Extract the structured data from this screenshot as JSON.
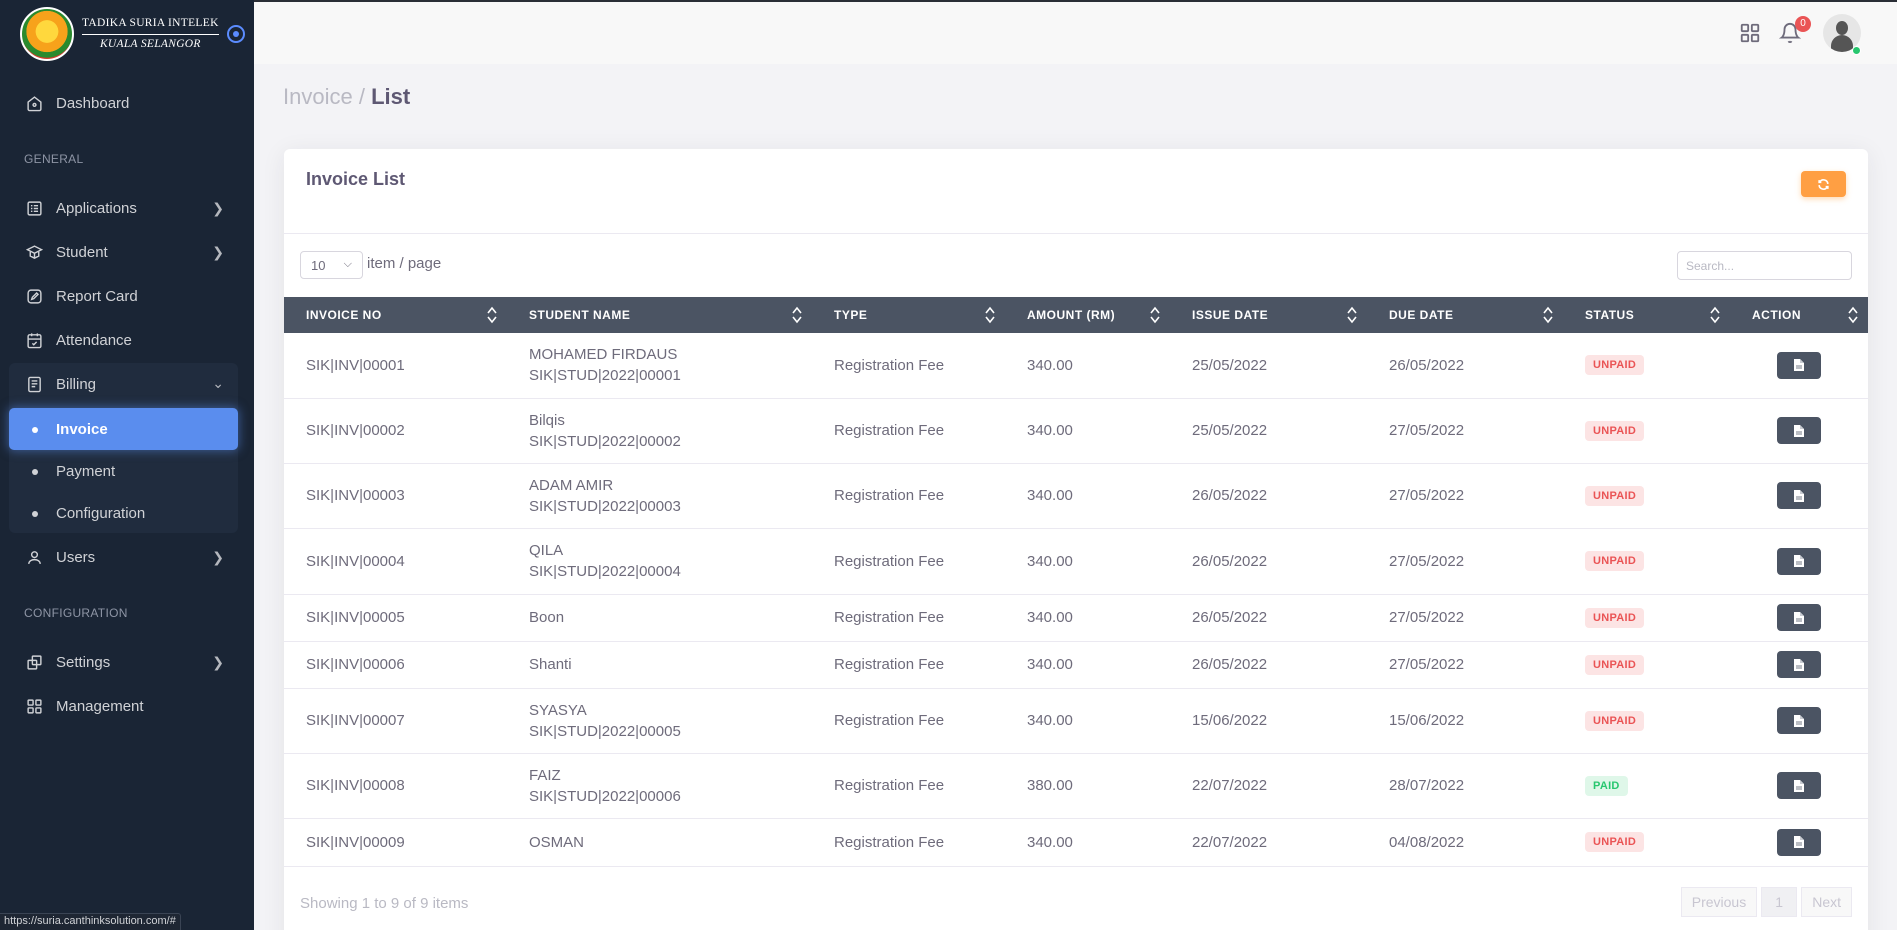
{
  "brand": {
    "line1": "TADIKA SURIA INTELEK",
    "line2": "KUALA SELANGOR"
  },
  "sidebar": {
    "dashboard": "Dashboard",
    "section_general": "GENERAL",
    "applications": "Applications",
    "student": "Student",
    "report_card": "Report Card",
    "attendance": "Attendance",
    "billing": "Billing",
    "invoice": "Invoice",
    "payment": "Payment",
    "configuration": "Configuration",
    "users": "Users",
    "section_configuration": "CONFIGURATION",
    "settings": "Settings",
    "management": "Management",
    "icons": [
      "home-icon",
      "list-icon",
      "book-icon",
      "edit-icon",
      "calendar-check-icon",
      "file-text-icon",
      "user-icon",
      "copy-icon",
      "grid-icon"
    ]
  },
  "topbar": {
    "notification_count": "0"
  },
  "breadcrumb": {
    "parent": "Invoice",
    "sep": "/",
    "current": "List"
  },
  "card": {
    "title": "Invoice List"
  },
  "controls": {
    "page_size": "10",
    "page_size_label": "item / page",
    "search_placeholder": "Search..."
  },
  "table": {
    "headers": [
      "INVOICE NO",
      "STUDENT NAME",
      "TYPE",
      "AMOUNT (RM)",
      "ISSUE DATE",
      "DUE DATE",
      "STATUS",
      "ACTION"
    ],
    "rows": [
      {
        "invoice_no": "SIK|INV|00001",
        "name": "MOHAMED FIRDAUS",
        "student_id": "SIK|STUD|2022|00001",
        "type": "Registration Fee",
        "amount": "340.00",
        "issue_date": "25/05/2022",
        "due_date": "26/05/2022",
        "status": "UNPAID"
      },
      {
        "invoice_no": "SIK|INV|00002",
        "name": "Bilqis",
        "student_id": "SIK|STUD|2022|00002",
        "type": "Registration Fee",
        "amount": "340.00",
        "issue_date": "25/05/2022",
        "due_date": "27/05/2022",
        "status": "UNPAID"
      },
      {
        "invoice_no": "SIK|INV|00003",
        "name": "ADAM AMIR",
        "student_id": "SIK|STUD|2022|00003",
        "type": "Registration Fee",
        "amount": "340.00",
        "issue_date": "26/05/2022",
        "due_date": "27/05/2022",
        "status": "UNPAID"
      },
      {
        "invoice_no": "SIK|INV|00004",
        "name": "QILA",
        "student_id": "SIK|STUD|2022|00004",
        "type": "Registration Fee",
        "amount": "340.00",
        "issue_date": "26/05/2022",
        "due_date": "27/05/2022",
        "status": "UNPAID"
      },
      {
        "invoice_no": "SIK|INV|00005",
        "name": "Boon",
        "student_id": "",
        "type": "Registration Fee",
        "amount": "340.00",
        "issue_date": "26/05/2022",
        "due_date": "27/05/2022",
        "status": "UNPAID"
      },
      {
        "invoice_no": "SIK|INV|00006",
        "name": "Shanti",
        "student_id": "",
        "type": "Registration Fee",
        "amount": "340.00",
        "issue_date": "26/05/2022",
        "due_date": "27/05/2022",
        "status": "UNPAID"
      },
      {
        "invoice_no": "SIK|INV|00007",
        "name": "SYASYA",
        "student_id": "SIK|STUD|2022|00005",
        "type": "Registration Fee",
        "amount": "340.00",
        "issue_date": "15/06/2022",
        "due_date": "15/06/2022",
        "status": "UNPAID"
      },
      {
        "invoice_no": "SIK|INV|00008",
        "name": "FAIZ",
        "student_id": "SIK|STUD|2022|00006",
        "type": "Registration Fee",
        "amount": "380.00",
        "issue_date": "22/07/2022",
        "due_date": "28/07/2022",
        "status": "PAID"
      },
      {
        "invoice_no": "SIK|INV|00009",
        "name": "OSMAN",
        "student_id": "",
        "type": "Registration Fee",
        "amount": "340.00",
        "issue_date": "22/07/2022",
        "due_date": "04/08/2022",
        "status": "UNPAID"
      }
    ]
  },
  "footer": {
    "showing": "Showing 1 to 9 of 9 items",
    "previous": "Previous",
    "page": "1",
    "next": "Next"
  },
  "status_bar": {
    "url": "https://suria.canthinksolution.com/#"
  },
  "colors": {
    "sidebar_bg": "#1a2535",
    "active": "#5a8dee",
    "header_bg": "#4b5463",
    "refresh": "#ff9f43",
    "unpaid": "#ea5455",
    "paid": "#28c76f"
  }
}
